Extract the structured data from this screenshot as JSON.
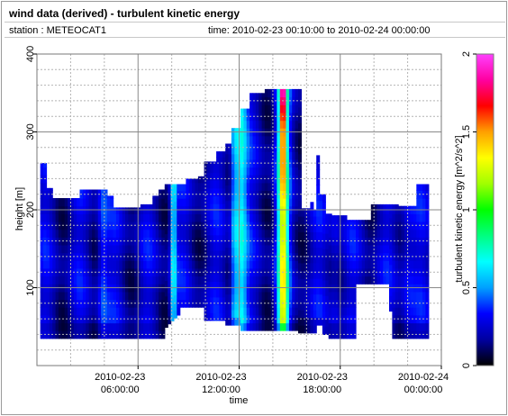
{
  "window": {
    "title": "wind data (derived) - turbulent kinetic energy",
    "station_label": "station : METEOCAT1",
    "time_label": "time: 2010-02-23 00:10:00 to 2010-02-24 00:00:00"
  },
  "colors": {
    "colormap": [
      "#000000",
      "#0000a0",
      "#0000ff",
      "#00a0ff",
      "#00ffff",
      "#00ff80",
      "#00ff00",
      "#a0ff00",
      "#ffff00",
      "#ffa000",
      "#ff0000",
      "#ff00a0",
      "#ff40ff"
    ],
    "no_data": "#ffffff",
    "grid": "#b4b4b4"
  },
  "chart_data": {
    "type": "heatmap",
    "title": "",
    "xlabel": "time",
    "ylabel": "height [m]",
    "colorbar_label": "turbulent kinetic energy [m^2/s^2]",
    "xlim_hours": [
      0,
      24
    ],
    "ylim": [
      0,
      400
    ],
    "x_ticks": [
      {
        "hour": 6,
        "line1": "2010-02-23",
        "line2": "06:00:00"
      },
      {
        "hour": 12,
        "line1": "2010-02-23",
        "line2": "12:00:00"
      },
      {
        "hour": 18,
        "line1": "2010-02-23",
        "line2": "18:00:00"
      },
      {
        "hour": 24,
        "line1": "2010-02-24",
        "line2": "00:00:00"
      }
    ],
    "y_ticks": [
      100,
      200,
      300,
      400
    ],
    "colorbar_ticks": [
      {
        "value": 0,
        "label": "0"
      },
      {
        "value": 0.5,
        "label": "0.5"
      },
      {
        "value": 1,
        "label": "1"
      },
      {
        "value": 1.5,
        "label": "1.5"
      },
      {
        "value": 2,
        "label": "2"
      }
    ],
    "color_range": [
      0,
      2
    ],
    "data_coverage_hours": [
      0.2,
      23.3
    ],
    "height_range_m": [
      30,
      350
    ],
    "max_tke_hour": 14.6,
    "grid": true,
    "colorbar_position": "right"
  }
}
